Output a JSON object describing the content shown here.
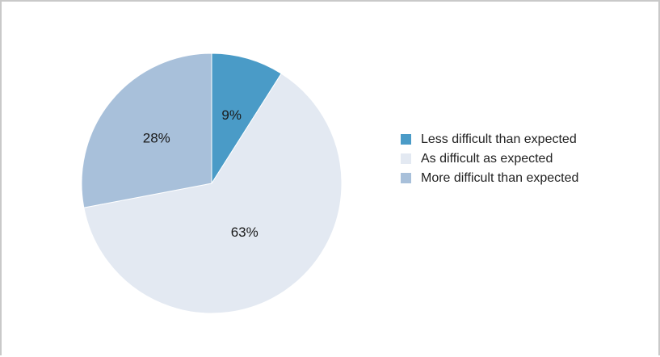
{
  "chart_data": {
    "type": "pie",
    "title": "",
    "start_angle_deg": 0,
    "direction": "clockwise",
    "slices": [
      {
        "label": "Less difficult than expected",
        "value": 9,
        "display": "9%",
        "color": "#4a9bc7"
      },
      {
        "label": "As difficult as expected",
        "value": 63,
        "display": "63%",
        "color": "#e3e9f2"
      },
      {
        "label": "More difficult than expected",
        "value": 28,
        "display": "28%",
        "color": "#a8c0da"
      }
    ],
    "legend_position": "right"
  }
}
